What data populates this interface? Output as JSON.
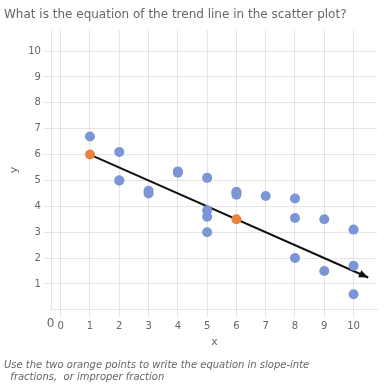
{
  "chart_data": {
    "type": "scatter",
    "title": "What is the equation of the trend line in the scatter plot?",
    "subtitle": [
      "Use the two orange points to write the equation in slope-inte",
      "  fractions,  or improper fraction"
    ],
    "xlabel": "x",
    "ylabel": "y",
    "xlim": [
      -0.3,
      10.8
    ],
    "ylim": [
      0,
      10.8
    ],
    "xticks": [
      0,
      1,
      2,
      3,
      4,
      5,
      6,
      7,
      8,
      9,
      10
    ],
    "yticks": [
      1,
      2,
      3,
      4,
      5,
      6,
      7,
      8,
      9,
      10
    ],
    "grid": true,
    "annotations": [
      {
        "text": "0",
        "x": -0.35,
        "y": -0.55
      }
    ],
    "series": [
      {
        "type": "line",
        "color": "#111111",
        "line_style": "solid",
        "marker": "none",
        "x": [
          1,
          10.5
        ],
        "values": [
          6,
          1.25
        ]
      },
      {
        "type": "scatter",
        "color": "#7b96d4",
        "marker": "circle",
        "x": [
          1,
          2,
          2,
          3,
          3,
          2,
          4,
          4,
          5,
          5,
          5,
          5,
          6,
          6,
          6,
          7,
          8,
          8,
          8,
          9,
          9,
          10,
          10,
          10
        ],
        "values": [
          6.7,
          5.0,
          5.0,
          4.6,
          4.5,
          6.1,
          5.35,
          5.3,
          3.6,
          3.85,
          3.0,
          5.1,
          4.55,
          4.45,
          4.55,
          4.4,
          4.3,
          2.0,
          3.55,
          1.5,
          3.5,
          3.1,
          1.7,
          0.6
        ]
      },
      {
        "type": "scatter",
        "color": "#e8823e",
        "marker": "circle",
        "x": [
          1,
          6
        ],
        "values": [
          6,
          3.5
        ]
      }
    ]
  }
}
